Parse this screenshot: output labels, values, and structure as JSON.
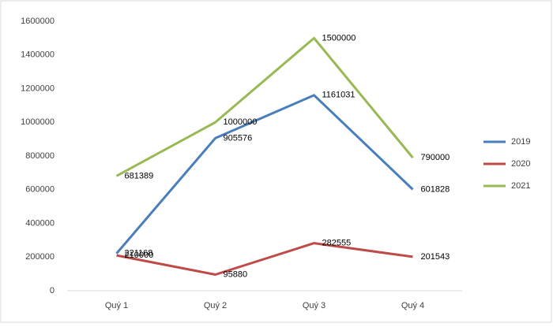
{
  "chart_data": {
    "type": "line",
    "categories": [
      "Quý 1",
      "Quý 2",
      "Quý 3",
      "Quý 4"
    ],
    "series": [
      {
        "name": "2019",
        "color": "#4a7ebb",
        "values": [
          221168,
          905576,
          1161031,
          601828
        ]
      },
      {
        "name": "2020",
        "color": "#be4b48",
        "values": [
          210000,
          95880,
          282555,
          201543
        ]
      },
      {
        "name": "2021",
        "color": "#98b954",
        "values": [
          681389,
          1000000,
          1500000,
          790000
        ]
      }
    ],
    "ylim": [
      0,
      1600000
    ],
    "yticks": [
      0,
      200000,
      400000,
      600000,
      800000,
      1000000,
      1200000,
      1400000,
      1600000
    ],
    "grid": false,
    "legend": "right"
  }
}
